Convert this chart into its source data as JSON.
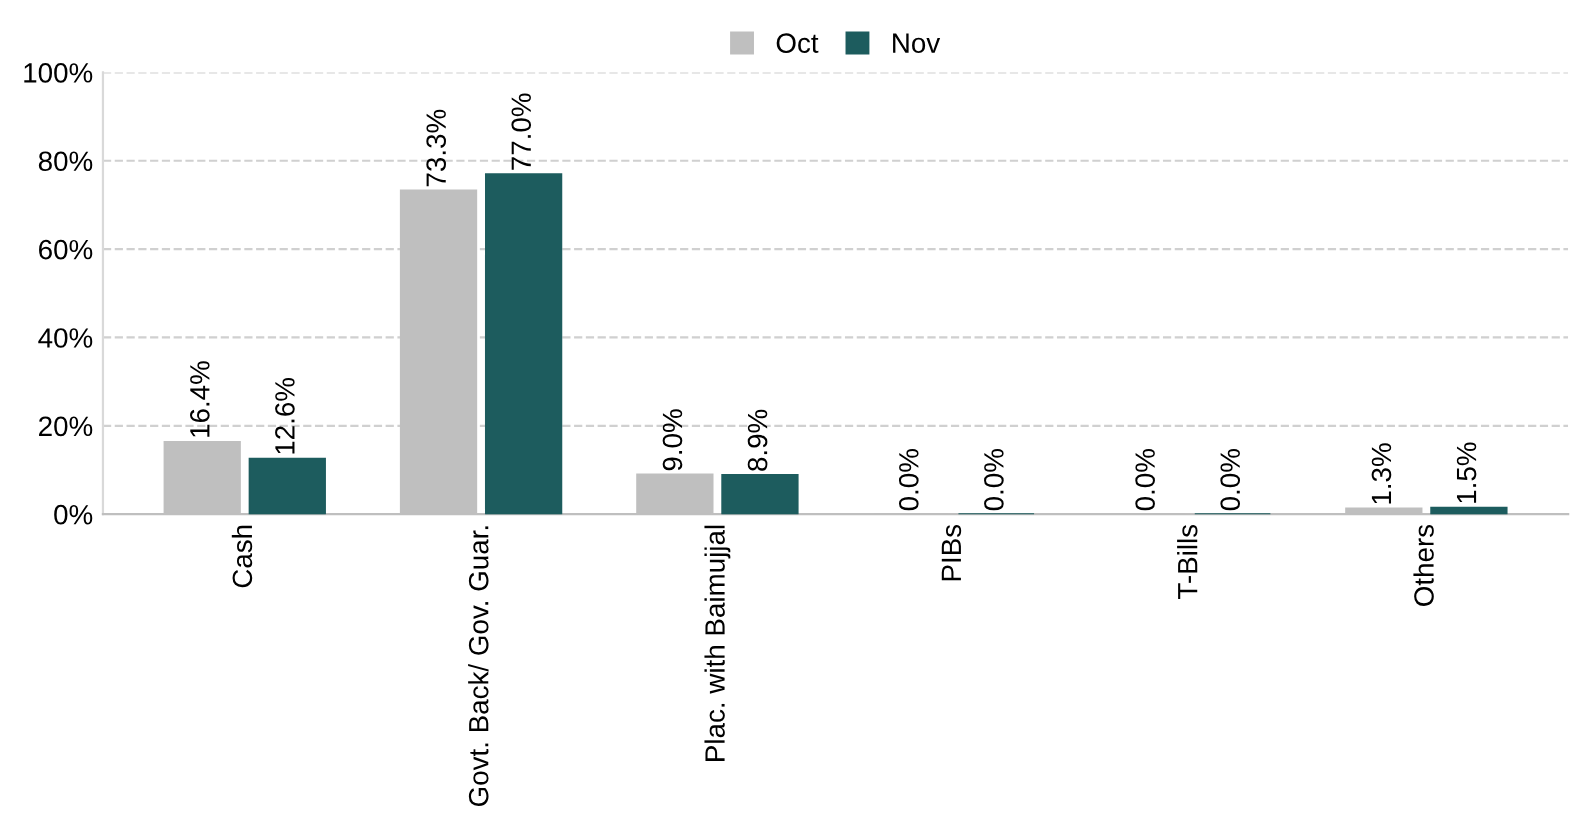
{
  "chart_data": {
    "type": "bar",
    "categories": [
      "Cash",
      "Govt. Back/ Gov. Guar.",
      "Plac. with Baimujjal",
      "PIBs",
      "T-Bills",
      "Others"
    ],
    "series": [
      {
        "name": "Oct",
        "color": "#bfbfbf",
        "values": [
          16.4,
          73.3,
          9.0,
          0.0,
          0.0,
          1.3
        ],
        "value_labels": [
          "16.4%",
          "73.3%",
          "9.0%",
          "0.0%",
          "0.0%",
          "1.3%"
        ]
      },
      {
        "name": "Nov",
        "color": "#1d5c5e",
        "values": [
          12.6,
          77.0,
          8.9,
          0.0,
          0.0,
          1.5
        ],
        "value_labels": [
          "12.6%",
          "77.0%",
          "8.9%",
          "0.0%",
          "0.0%",
          "1.5%"
        ]
      }
    ],
    "ylim": [
      0,
      100
    ],
    "yticks": [
      {
        "value": 0,
        "label": "0%"
      },
      {
        "value": 20,
        "label": "20%"
      },
      {
        "value": 40,
        "label": "40%"
      },
      {
        "value": 60,
        "label": "60%"
      },
      {
        "value": 80,
        "label": "80%"
      },
      {
        "value": 100,
        "label": "100%"
      }
    ],
    "grid": "y",
    "legend": "top"
  }
}
